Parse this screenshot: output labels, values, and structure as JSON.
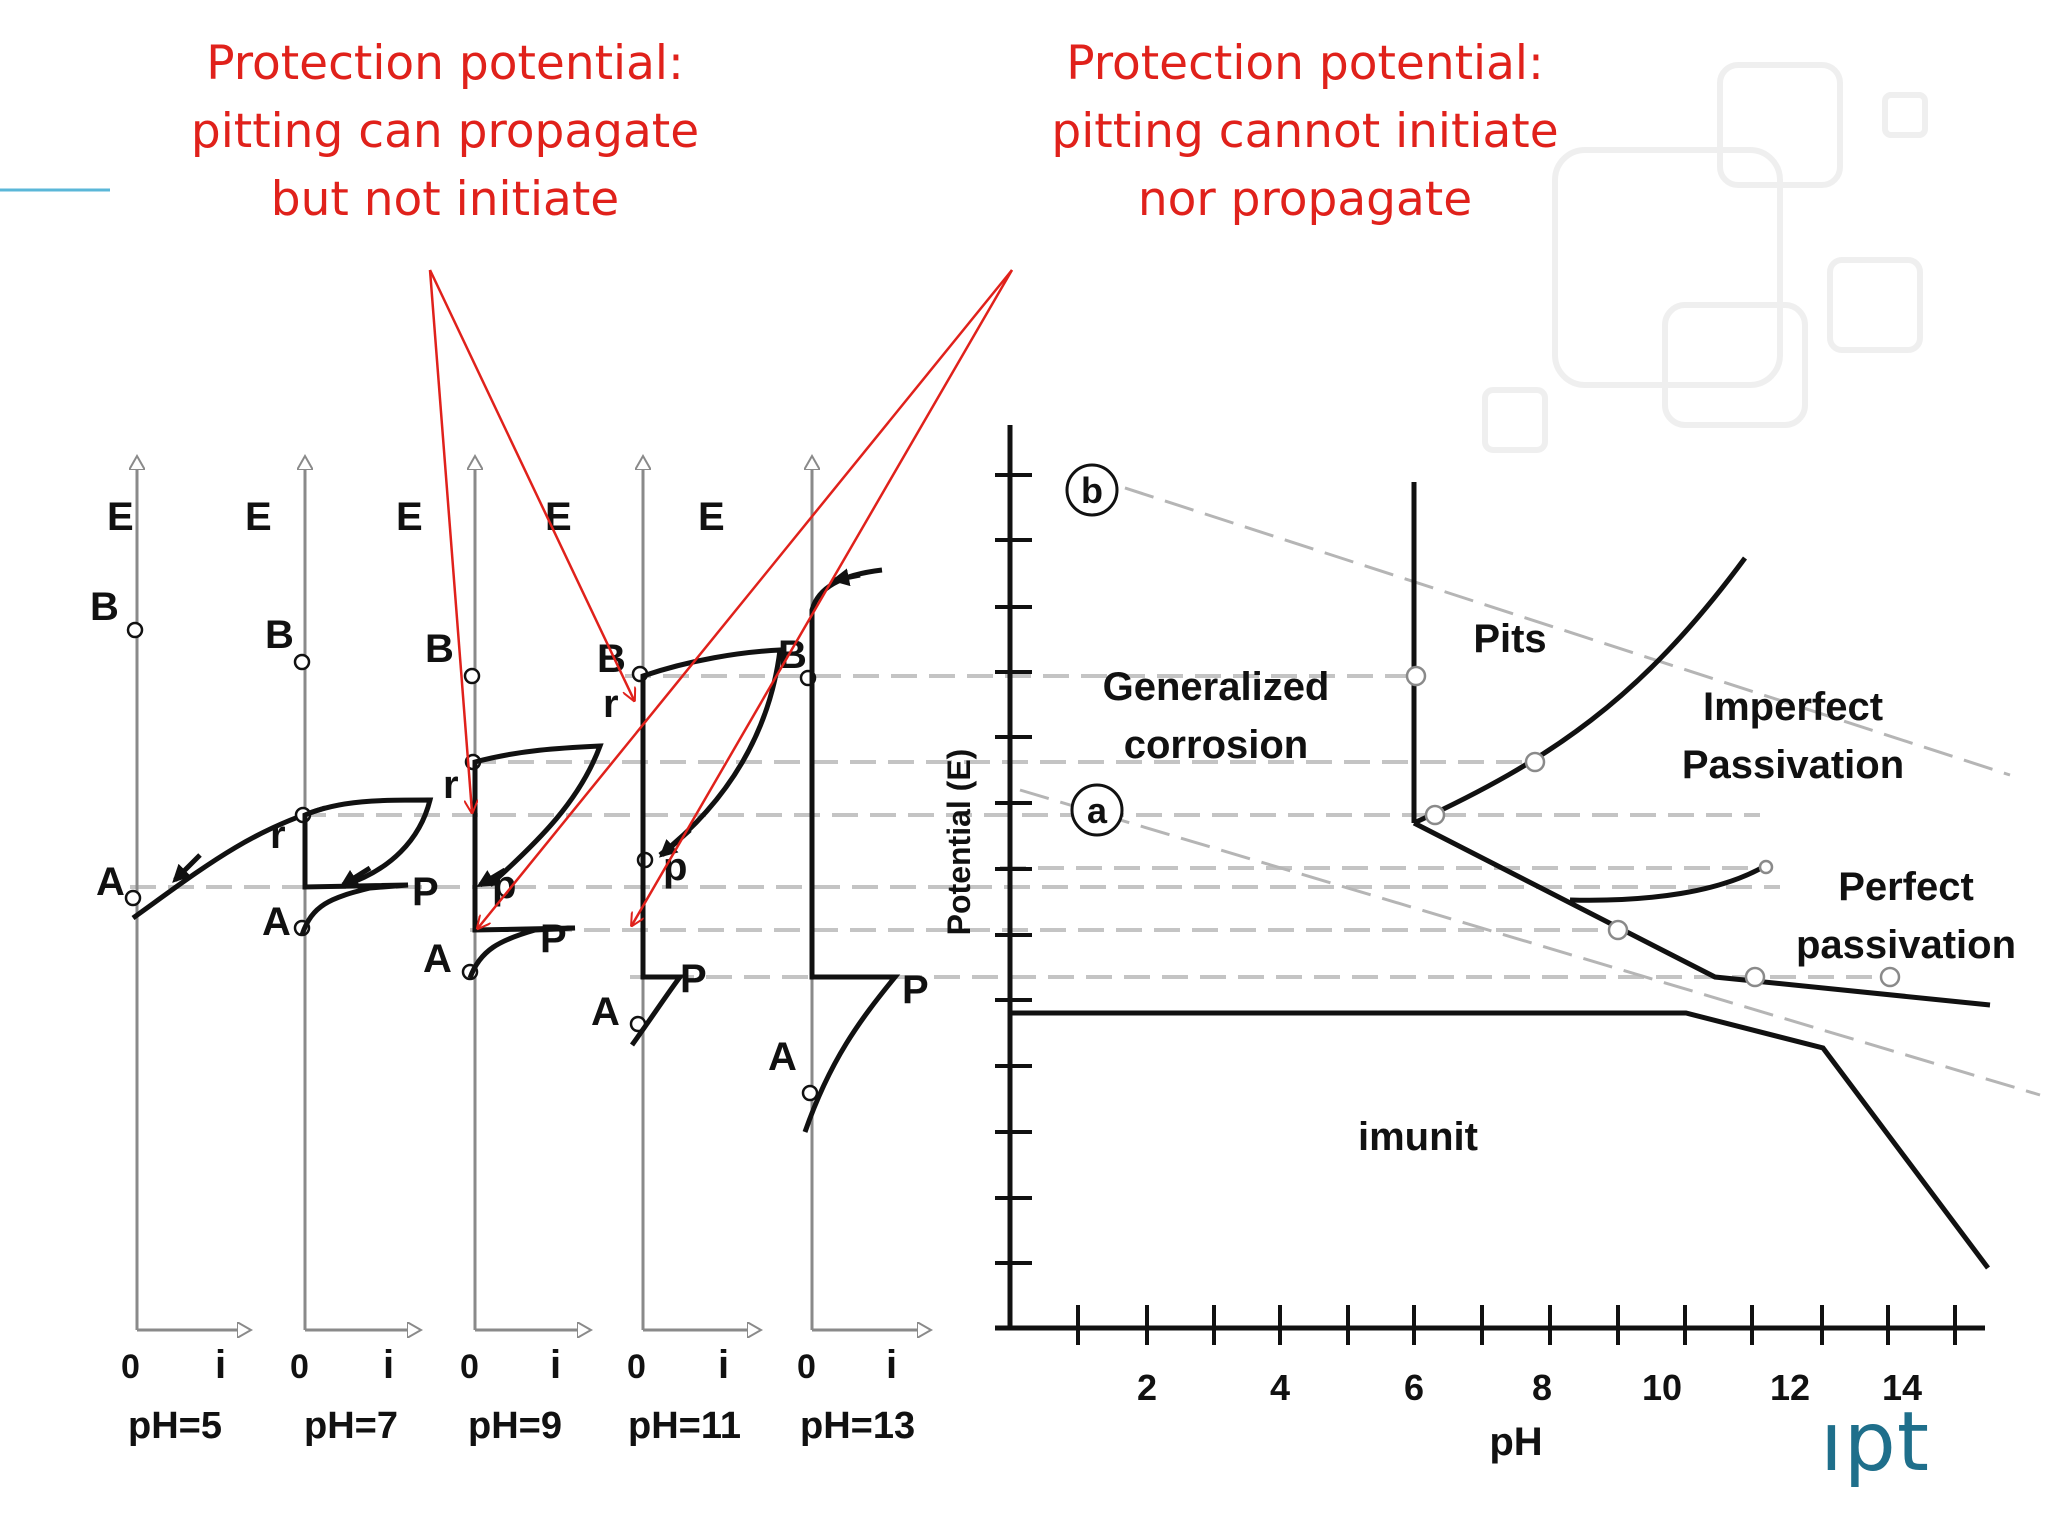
{
  "annotations": {
    "left": {
      "line1": "Protection potential:",
      "line2": "pitting can propagate",
      "line3": "but not initiate"
    },
    "right": {
      "line1": "Protection potential:",
      "line2": "pitting cannot initiate",
      "line3": "nor propagate"
    }
  },
  "polarization_curves": [
    {
      "ph_label": "pH=5",
      "axis_e": "E",
      "axis_i": "i",
      "origin": "0",
      "markers": [
        "B",
        "A"
      ]
    },
    {
      "ph_label": "pH=7",
      "axis_e": "E",
      "axis_i": "i",
      "origin": "0",
      "markers": [
        "B",
        "r",
        "A",
        "P"
      ]
    },
    {
      "ph_label": "pH=9",
      "axis_e": "E",
      "axis_i": "i",
      "origin": "0",
      "markers": [
        "B",
        "r",
        "p",
        "A",
        "P"
      ]
    },
    {
      "ph_label": "pH=11",
      "axis_e": "E",
      "axis_i": "i",
      "origin": "0",
      "markers": [
        "B",
        "r",
        "p",
        "A",
        "P"
      ]
    },
    {
      "ph_label": "pH=13",
      "axis_e": "E",
      "axis_i": "i",
      "origin": "0",
      "markers": [
        "B",
        "A",
        "P"
      ]
    }
  ],
  "diagram": {
    "ylabel": "Potential (E)",
    "xlabel": "pH",
    "x_ticks": [
      "2",
      "4",
      "6",
      "8",
      "10",
      "12",
      "14"
    ],
    "lines": {
      "b": "b",
      "a": "a"
    },
    "regions": {
      "pits": "Pits",
      "generalized_1": "Generalized",
      "generalized_2": "corrosion",
      "imperfect_1": "Imperfect",
      "imperfect_2": "Passivation",
      "perfect_1": "Perfect",
      "perfect_2": "passivation",
      "immunity": "imunit"
    }
  },
  "logo": {
    "text": "ıpt"
  },
  "colors": {
    "annotation": "#e0211b",
    "curve": "#111111",
    "axis_gray": "#8a8a8a",
    "dashed": "#c4c4c4",
    "logo": "#1f6f8b"
  }
}
